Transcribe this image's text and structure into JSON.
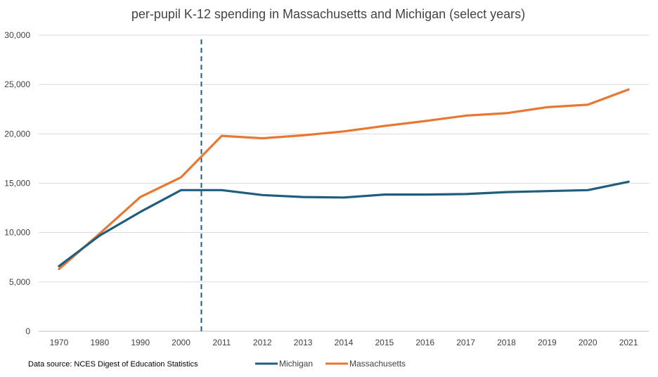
{
  "chart_data": {
    "type": "line",
    "title": "per-pupil K-12 spending in Massachusetts and Michigan (select years)",
    "categories": [
      "1970",
      "1980",
      "1990",
      "2000",
      "2011",
      "2012",
      "2013",
      "2014",
      "2015",
      "2016",
      "2017",
      "2018",
      "2019",
      "2020",
      "2021"
    ],
    "series": [
      {
        "name": "Michigan",
        "color": "#1f5e7e",
        "values": [
          6600,
          9700,
          12100,
          14300,
          14300,
          13800,
          13600,
          13550,
          13850,
          13850,
          13900,
          14100,
          14200,
          14300,
          15150
        ]
      },
      {
        "name": "Massachusetts",
        "color": "#e87732",
        "values": [
          6300,
          9900,
          13600,
          15600,
          19800,
          19550,
          19850,
          20250,
          20800,
          21300,
          21850,
          22100,
          22700,
          22950,
          24500
        ]
      }
    ],
    "ylim": [
      0,
      30000
    ],
    "yticks": [
      "0",
      "5,000",
      "10,000",
      "15,000",
      "20,000",
      "25,000",
      "30,000"
    ],
    "ytick_values": [
      0,
      5000,
      10000,
      15000,
      20000,
      25000,
      30000
    ],
    "grid": true,
    "reference_line": {
      "between": [
        "2000",
        "2011"
      ],
      "style": "dashed",
      "color": "#1f5e7e"
    },
    "source_note": "Data source: NCES Digest of Education Statistics",
    "legend_position": "bottom"
  }
}
